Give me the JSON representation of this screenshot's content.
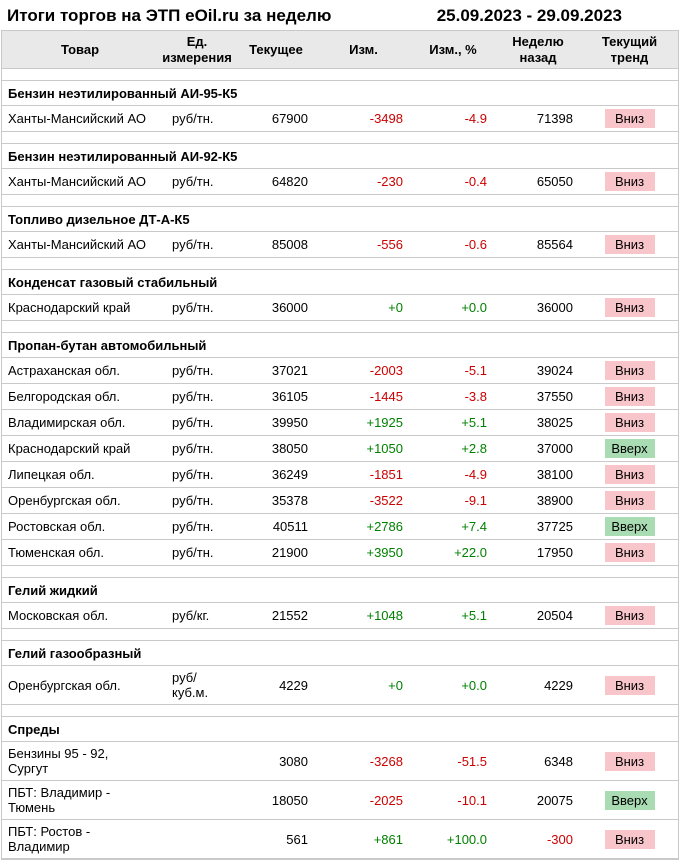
{
  "header": {
    "title": "Итоги торгов на ЭТП eOil.ru за неделю",
    "date_range": "25.09.2023 - 29.09.2023"
  },
  "colors": {
    "negative_text": "#cc0000",
    "positive_text": "#008000",
    "trend_down_bg": "#f8c5cb",
    "trend_up_bg": "#a9dcb2",
    "header_bg": "#e9e9e9",
    "border": "#c9c9c9"
  },
  "table": {
    "columns": [
      "Товар",
      "Ед.\nизмерения",
      "Текущее",
      "Изм.",
      "Изм., %",
      "Неделю\nназад",
      "Текущий\nтренд"
    ],
    "trend_up_label": "Вверх",
    "trend_down_label": "Вниз",
    "sections": [
      {
        "title": "Бензин неэтилированный АИ-95-К5",
        "rows": [
          {
            "region": "Ханты-Мансийский АО",
            "unit": "руб/тн.",
            "current": "67900",
            "change": "-3498",
            "change_pct": "-4.9",
            "week_ago": "71398",
            "trend": "Вниз"
          }
        ]
      },
      {
        "title": "Бензин неэтилированный АИ-92-К5",
        "rows": [
          {
            "region": "Ханты-Мансийский АО",
            "unit": "руб/тн.",
            "current": "64820",
            "change": "-230",
            "change_pct": "-0.4",
            "week_ago": "65050",
            "trend": "Вниз"
          }
        ]
      },
      {
        "title": "Топливо дизельное ДТ-А-К5",
        "rows": [
          {
            "region": "Ханты-Мансийский АО",
            "unit": "руб/тн.",
            "current": "85008",
            "change": "-556",
            "change_pct": "-0.6",
            "week_ago": "85564",
            "trend": "Вниз"
          }
        ]
      },
      {
        "title": "Конденсат газовый стабильный",
        "rows": [
          {
            "region": "Краснодарский край",
            "unit": "руб/тн.",
            "current": "36000",
            "change": "+0",
            "change_pct": "+0.0",
            "week_ago": "36000",
            "trend": "Вниз"
          }
        ]
      },
      {
        "title": "Пропан-бутан автомобильный",
        "rows": [
          {
            "region": "Астраханская обл.",
            "unit": "руб/тн.",
            "current": "37021",
            "change": "-2003",
            "change_pct": "-5.1",
            "week_ago": "39024",
            "trend": "Вниз"
          },
          {
            "region": "Белгородская обл.",
            "unit": "руб/тн.",
            "current": "36105",
            "change": "-1445",
            "change_pct": "-3.8",
            "week_ago": "37550",
            "trend": "Вниз"
          },
          {
            "region": "Владимирская обл.",
            "unit": "руб/тн.",
            "current": "39950",
            "change": "+1925",
            "change_pct": "+5.1",
            "week_ago": "38025",
            "trend": "Вниз"
          },
          {
            "region": "Краснодарский край",
            "unit": "руб/тн.",
            "current": "38050",
            "change": "+1050",
            "change_pct": "+2.8",
            "week_ago": "37000",
            "trend": "Вверх"
          },
          {
            "region": "Липецкая обл.",
            "unit": "руб/тн.",
            "current": "36249",
            "change": "-1851",
            "change_pct": "-4.9",
            "week_ago": "38100",
            "trend": "Вниз"
          },
          {
            "region": "Оренбургская обл.",
            "unit": "руб/тн.",
            "current": "35378",
            "change": "-3522",
            "change_pct": "-9.1",
            "week_ago": "38900",
            "trend": "Вниз"
          },
          {
            "region": "Ростовская обл.",
            "unit": "руб/тн.",
            "current": "40511",
            "change": "+2786",
            "change_pct": "+7.4",
            "week_ago": "37725",
            "trend": "Вверх"
          },
          {
            "region": "Тюменская обл.",
            "unit": "руб/тн.",
            "current": "21900",
            "change": "+3950",
            "change_pct": "+22.0",
            "week_ago": "17950",
            "trend": "Вниз"
          }
        ]
      },
      {
        "title": "Гелий жидкий",
        "rows": [
          {
            "region": "Московская обл.",
            "unit": "руб/кг.",
            "current": "21552",
            "change": "+1048",
            "change_pct": "+5.1",
            "week_ago": "20504",
            "trend": "Вниз"
          }
        ]
      },
      {
        "title": "Гелий газообразный",
        "rows": [
          {
            "region": "Оренбургская обл.",
            "unit": "руб/куб.м.",
            "current": "4229",
            "change": "+0",
            "change_pct": "+0.0",
            "week_ago": "4229",
            "trend": "Вниз"
          }
        ]
      },
      {
        "title": "Спреды",
        "rows": [
          {
            "region": "Бензины 95 - 92, Сургут",
            "unit": "",
            "current": "3080",
            "change": "-3268",
            "change_pct": "-51.5",
            "week_ago": "6348",
            "trend": "Вниз"
          },
          {
            "region": "ПБТ: Владимир - Тюмень",
            "unit": "",
            "current": "18050",
            "change": "-2025",
            "change_pct": "-10.1",
            "week_ago": "20075",
            "trend": "Вверх"
          },
          {
            "region": "ПБТ: Ростов - Владимир",
            "unit": "",
            "current": "561",
            "change": "+861",
            "change_pct": "+100.0",
            "week_ago": "-300",
            "trend": "Вниз"
          }
        ]
      }
    ]
  }
}
